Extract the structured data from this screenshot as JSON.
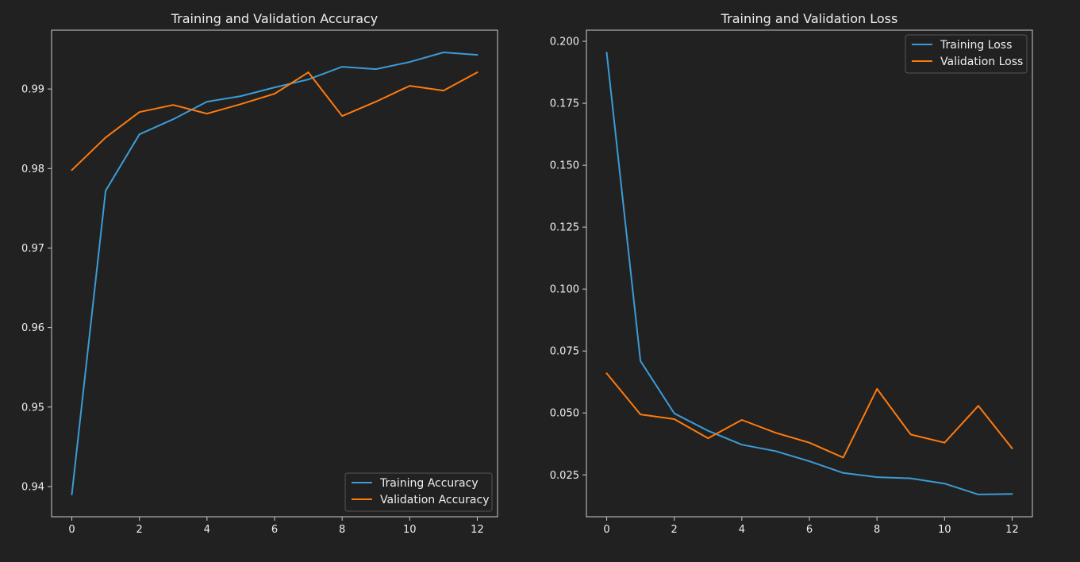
{
  "colors": {
    "background": "#212121",
    "training": "#3c9bd6",
    "validation": "#ff7a0e"
  },
  "chart_data": [
    {
      "type": "line",
      "title": "Training and Validation Accuracy",
      "xlabel": "",
      "ylabel": "",
      "x": [
        0,
        1,
        2,
        3,
        4,
        5,
        6,
        7,
        8,
        9,
        10,
        11,
        12
      ],
      "xticks": [
        0,
        2,
        4,
        6,
        8,
        10,
        12
      ],
      "xticklabels": [
        "0",
        "2",
        "4",
        "6",
        "8",
        "10",
        "12"
      ],
      "yticks": [
        0.94,
        0.95,
        0.96,
        0.97,
        0.98,
        0.99
      ],
      "yticklabels": [
        "0.94",
        "0.95",
        "0.96",
        "0.97",
        "0.98",
        "0.99"
      ],
      "xlim": [
        -0.6,
        12.6
      ],
      "ylim": [
        0.9362,
        0.9974
      ],
      "grid": false,
      "legend_position": "lower-right",
      "series": [
        {
          "name": "Training Accuracy",
          "color": "#3c9bd6",
          "values": [
            0.939,
            0.9772,
            0.9843,
            0.9862,
            0.9884,
            0.9891,
            0.9902,
            0.9912,
            0.9928,
            0.9925,
            0.9934,
            0.9946,
            0.9943
          ]
        },
        {
          "name": "Validation Accuracy",
          "color": "#ff7a0e",
          "values": [
            0.9798,
            0.9839,
            0.9871,
            0.988,
            0.9869,
            0.9881,
            0.9894,
            0.9921,
            0.9866,
            0.9884,
            0.9904,
            0.9898,
            0.9921
          ]
        }
      ]
    },
    {
      "type": "line",
      "title": "Training and Validation Loss",
      "xlabel": "",
      "ylabel": "",
      "x": [
        0,
        1,
        2,
        3,
        4,
        5,
        6,
        7,
        8,
        9,
        10,
        11,
        12
      ],
      "xticks": [
        0,
        2,
        4,
        6,
        8,
        10,
        12
      ],
      "xticklabels": [
        "0",
        "2",
        "4",
        "6",
        "8",
        "10",
        "12"
      ],
      "yticks": [
        0.025,
        0.05,
        0.075,
        0.1,
        0.125,
        0.15,
        0.175,
        0.2
      ],
      "yticklabels": [
        "0.025",
        "0.050",
        "0.075",
        "0.100",
        "0.125",
        "0.150",
        "0.175",
        "0.200"
      ],
      "xlim": [
        -0.6,
        12.6
      ],
      "ylim": [
        0.0081,
        0.2045
      ],
      "grid": false,
      "legend_position": "upper-right",
      "series": [
        {
          "name": "Training Loss",
          "color": "#3c9bd6",
          "values": [
            0.1955,
            0.071,
            0.0498,
            0.0428,
            0.0372,
            0.0346,
            0.0305,
            0.0258,
            0.0241,
            0.0236,
            0.0215,
            0.0171,
            0.0173
          ]
        },
        {
          "name": "Validation Loss",
          "color": "#ff7a0e",
          "values": [
            0.066,
            0.0494,
            0.0475,
            0.0398,
            0.0472,
            0.042,
            0.038,
            0.032,
            0.0597,
            0.0413,
            0.038,
            0.0529,
            0.0357
          ]
        }
      ]
    }
  ]
}
